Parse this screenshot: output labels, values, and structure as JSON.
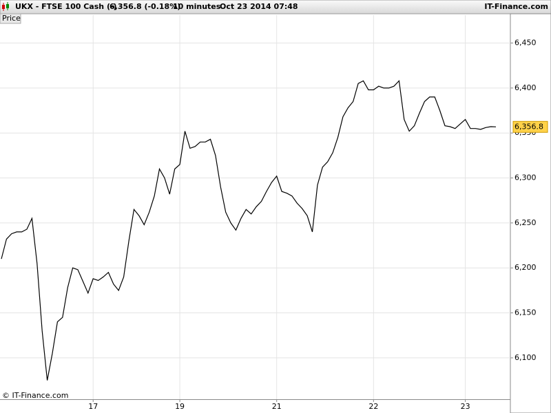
{
  "header": {
    "symbol": "UKX - FTSE 100 Cash (-)",
    "quote": "6,356.8 (-0.18%)",
    "interval": "10 minutes",
    "timestamp": "Oct 23 2014 07:48",
    "brand": "IT-Finance.com"
  },
  "chart_data": {
    "type": "line",
    "panel_label": "Price",
    "watermark": "© IT-Finance.com",
    "categories": [
      null,
      null,
      null,
      null,
      null,
      null,
      null,
      null,
      null,
      null,
      null,
      null,
      null,
      null,
      null,
      null,
      null,
      null,
      "17",
      null,
      null,
      null,
      null,
      null,
      null,
      null,
      null,
      null,
      null,
      null,
      null,
      null,
      null,
      null,
      null,
      "19",
      null,
      null,
      null,
      null,
      null,
      null,
      null,
      null,
      null,
      null,
      null,
      null,
      null,
      null,
      null,
      null,
      null,
      null,
      "21",
      null,
      null,
      null,
      null,
      null,
      null,
      null,
      null,
      null,
      null,
      null,
      null,
      null,
      null,
      null,
      null,
      null,
      null,
      "22",
      null,
      null,
      null,
      null,
      null,
      null,
      null,
      null,
      null,
      null,
      null,
      null,
      null,
      null,
      null,
      null,
      null,
      "23",
      null,
      null,
      null,
      null,
      null,
      null
    ],
    "series": [
      {
        "name": "UKX",
        "color": "#000000",
        "values": [
          6210,
          6232,
          6238,
          6240,
          6240,
          6243,
          6255,
          6205,
          6130,
          6075,
          6105,
          6140,
          6145,
          6178,
          6200,
          6198,
          6185,
          6172,
          6188,
          6186,
          6190,
          6195,
          6182,
          6175,
          6190,
          6230,
          6265,
          6258,
          6248,
          6262,
          6280,
          6310,
          6300,
          6282,
          6310,
          6315,
          6352,
          6333,
          6335,
          6340,
          6340,
          6343,
          6325,
          6290,
          6262,
          6250,
          6242,
          6255,
          6265,
          6260,
          6268,
          6274,
          6285,
          6295,
          6302,
          6285,
          6283,
          6280,
          6272,
          6266,
          6258,
          6240,
          6292,
          6312,
          6318,
          6328,
          6345,
          6368,
          6378,
          6385,
          6405,
          6408,
          6398,
          6398,
          6402,
          6400,
          6400,
          6402,
          6408,
          6365,
          6352,
          6358,
          6372,
          6385,
          6390,
          6390,
          6375,
          6358,
          6357,
          6355,
          6360,
          6365,
          6355,
          6355,
          6354,
          6356,
          6357,
          6356.8
        ]
      }
    ],
    "last_price": {
      "value": 6356.8,
      "label": "6,356.8"
    },
    "ylim": [
      6054,
      6481
    ],
    "yticks": [
      {
        "value": 6100,
        "label": "6,100"
      },
      {
        "value": 6150,
        "label": "6,150"
      },
      {
        "value": 6200,
        "label": "6,200"
      },
      {
        "value": 6250,
        "label": "6,250"
      },
      {
        "value": 6300,
        "label": "6,300"
      },
      {
        "value": 6350,
        "label": "6,350"
      },
      {
        "value": 6400,
        "label": "6,400"
      },
      {
        "value": 6450,
        "label": "6,450"
      }
    ],
    "grid": true
  }
}
